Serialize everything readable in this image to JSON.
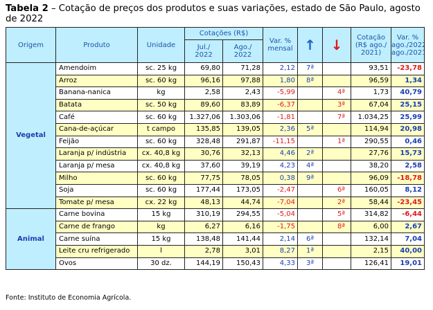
{
  "title_bold": "Tabela 2",
  "title_rest": " – Cotação de preços dos produtos e suas variações, estado de São Paulo, agosto de 2022",
  "headers": {
    "origem": "Origem",
    "produto": "Produto",
    "unidade": "Unidade",
    "cotacoes": "Cotações (R$)",
    "jul_line1": "Jul./",
    "jul_line2": "2022",
    "ago_line1": "Ago./",
    "ago_line2": "2022",
    "var_line1": "Var. %",
    "var_line2": "mensal",
    "arrow_up": "↑",
    "arrow_down": "↓",
    "cot_line1": "Cotação",
    "cot_line2": "(R$ ago./",
    "cot_line3": "2021)",
    "var2_line1": "Var. %",
    "var2_line2": "ago./2022-",
    "var2_line3": "ago./2021"
  },
  "groups": {
    "vegetal": "Vegetal",
    "animal": "Animal"
  },
  "rows": [
    {
      "produto": "Amendoim",
      "unidade": "sc. 25 kg",
      "jul": "69,80",
      "ago": "71,28",
      "var": "2,12",
      "up": "7ª",
      "down": "",
      "cot": "93,51",
      "var2": "-23,78"
    },
    {
      "produto": "Arroz",
      "unidade": "sc. 60 kg",
      "jul": "96,16",
      "ago": "97,88",
      "var": "1,80",
      "up": "8ª",
      "down": "",
      "cot": "96,59",
      "var2": "1,34"
    },
    {
      "produto": "Banana-nanica",
      "unidade": "kg",
      "jul": "2,58",
      "ago": "2,43",
      "var": "-5,99",
      "up": "",
      "down": "4ª",
      "cot": "1,73",
      "var2": "40,79"
    },
    {
      "produto": "Batata",
      "unidade": "sc. 50 kg",
      "jul": "89,60",
      "ago": "83,89",
      "var": "-6,37",
      "up": "",
      "down": "3ª",
      "cot": "67,04",
      "var2": "25,15"
    },
    {
      "produto": "Café",
      "unidade": "sc. 60 kg",
      "jul": "1.327,06",
      "ago": "1.303,06",
      "var": "-1,81",
      "up": "",
      "down": "7ª",
      "cot": "1.034,25",
      "var2": "25,99"
    },
    {
      "produto": "Cana-de-açúcar",
      "unidade": "t campo",
      "jul": "135,85",
      "ago": "139,05",
      "var": "2,36",
      "up": "5ª",
      "down": "",
      "cot": "114,94",
      "var2": "20,98"
    },
    {
      "produto": "Feijão",
      "unidade": "sc. 60 kg",
      "jul": "328,48",
      "ago": "291,87",
      "var": "-11,15",
      "up": "",
      "down": "1ª",
      "cot": "290,55",
      "var2": "0,46"
    },
    {
      "produto": "Laranja p/ indústria",
      "unidade": "cx. 40,8 kg",
      "jul": "30,76",
      "ago": "32,13",
      "var": "4,46",
      "up": "2ª",
      "down": "",
      "cot": "27,76",
      "var2": "15,73"
    },
    {
      "produto": "Laranja p/ mesa",
      "unidade": "cx. 40,8 kg",
      "jul": "37,60",
      "ago": "39,19",
      "var": "4,23",
      "up": "4ª",
      "down": "",
      "cot": "38,20",
      "var2": "2,58"
    },
    {
      "produto": "Milho",
      "unidade": "sc. 60 kg",
      "jul": "77,75",
      "ago": "78,05",
      "var": "0,38",
      "up": "9ª",
      "down": "",
      "cot": "96,09",
      "var2": "-18,78"
    },
    {
      "produto": "Soja",
      "unidade": "sc. 60 kg",
      "jul": "177,44",
      "ago": "173,05",
      "var": "-2,47",
      "up": "",
      "down": "6ª",
      "cot": "160,05",
      "var2": "8,12"
    },
    {
      "produto": "Tomate p/ mesa",
      "unidade": "cx. 22 kg",
      "jul": "48,13",
      "ago": "44,74",
      "var": "-7,04",
      "up": "",
      "down": "2ª",
      "cot": "58,44",
      "var2": "-23,45"
    },
    {
      "produto": "Carne bovina",
      "unidade": "15 kg",
      "jul": "310,19",
      "ago": "294,55",
      "var": "-5,04",
      "up": "",
      "down": "5ª",
      "cot": "314,82",
      "var2": "-6,44"
    },
    {
      "produto": "Carne de frango",
      "unidade": "kg",
      "jul": "6,27",
      "ago": "6,16",
      "var": "-1,75",
      "up": "",
      "down": "8ª",
      "cot": "6,00",
      "var2": "2,67"
    },
    {
      "produto": "Carne suína",
      "unidade": "15 kg",
      "jul": "138,48",
      "ago": "141,44",
      "var": "2,14",
      "up": "6ª",
      "down": "",
      "cot": "132,14",
      "var2": "7,04"
    },
    {
      "produto": "Leite cru refrigerado",
      "unidade": "l",
      "jul": "2,78",
      "ago": "3,01",
      "var": "8,27",
      "up": "1ª",
      "down": "",
      "cot": "2,15",
      "var2": "40,00"
    },
    {
      "produto": "Ovos",
      "unidade": "30 dz.",
      "jul": "144,19",
      "ago": "150,43",
      "var": "4,33",
      "up": "3ª",
      "down": "",
      "cot": "126,41",
      "var2": "19,01"
    }
  ],
  "source": "Fonte: Instituto de Economia Agrícola.",
  "colors": {
    "header_bg": "#bfeeff",
    "row_highlight": "#ffffc4",
    "negative": "#e01818",
    "positive": "#1a3fb0"
  }
}
